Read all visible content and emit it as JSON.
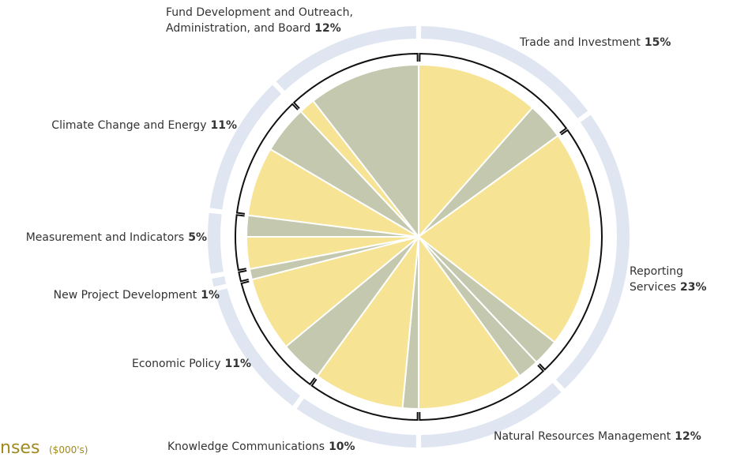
{
  "chart_data": {
    "type": "pie",
    "categories": [
      "Trade and Investment",
      "Reporting\nServices",
      "Natural Resources Management",
      "Knowledge Communications",
      "Economic Policy",
      "New Project Development",
      "Measurement and Indicators",
      "Climate Change and Energy",
      "Fund Development and Outreach,\nAdministration, and Board"
    ],
    "values": [
      15,
      23,
      12,
      10,
      11,
      1,
      5,
      11,
      12
    ],
    "value_labels": [
      "15%",
      "23%",
      "12%",
      "10%",
      "11%",
      "1%",
      "5%",
      "11%",
      "12%"
    ],
    "segments": [
      [
        {
          "color": "#f6e393",
          "value": 11.5
        },
        {
          "color": "#c4c8ae",
          "value": 3.5
        }
      ],
      [
        {
          "color": "#f6e393",
          "value": 20.5
        },
        {
          "color": "#c4c8ae",
          "value": 2.5
        }
      ],
      [
        {
          "color": "#c4c8ae",
          "value": 2
        },
        {
          "color": "#f6e393",
          "value": 10
        }
      ],
      [
        {
          "color": "#c4c8ae",
          "value": 1.5
        },
        {
          "color": "#f6e393",
          "value": 8.5
        }
      ],
      [
        {
          "color": "#c4c8ae",
          "value": 4
        },
        {
          "color": "#f6e393",
          "value": 7
        }
      ],
      [
        {
          "color": "#c4c8ae",
          "value": 1
        }
      ],
      [
        {
          "color": "#f6e393",
          "value": 3
        },
        {
          "color": "#c4c8ae",
          "value": 2
        }
      ],
      [
        {
          "color": "#f6e393",
          "value": 6.5
        },
        {
          "color": "#c4c8ae",
          "value": 4.5
        }
      ],
      [
        {
          "color": "#f6e393",
          "value": 1.5
        },
        {
          "color": "#c4c8ae",
          "value": 10.5
        }
      ]
    ],
    "footer_title": "nses",
    "footer_unit": "($000's)"
  }
}
